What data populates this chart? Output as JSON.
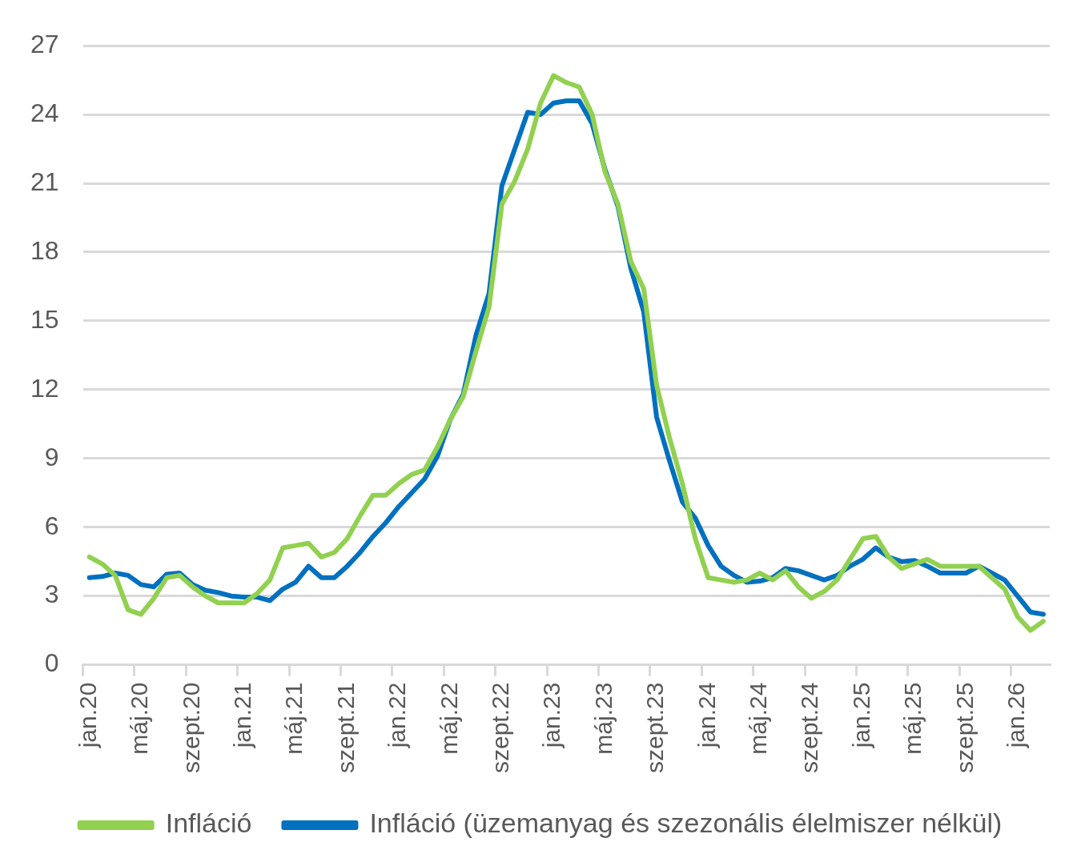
{
  "chart_data": {
    "type": "line",
    "categories": [
      "jan.20",
      null,
      null,
      null,
      "máj.20",
      null,
      null,
      null,
      "szept.20",
      null,
      null,
      null,
      "jan.21",
      null,
      null,
      null,
      "máj.21",
      null,
      null,
      null,
      "szept.21",
      null,
      null,
      null,
      "jan.22",
      null,
      null,
      null,
      "máj.22",
      null,
      null,
      null,
      "szept.22",
      null,
      null,
      null,
      "jan.23",
      null,
      null,
      null,
      "máj.23",
      null,
      null,
      null,
      "szept.23",
      null,
      null,
      null,
      "jan.24",
      null,
      null,
      null,
      "máj.24",
      null,
      null,
      null,
      "szept.24",
      null,
      null,
      null,
      "jan.25",
      null,
      null,
      null,
      "máj.25",
      null,
      null,
      null,
      "szept.25",
      null,
      null,
      null,
      "jan.26",
      null,
      null
    ],
    "series": [
      {
        "name": "Infláció",
        "color": "#92d050",
        "values": [
          4.7,
          4.4,
          3.9,
          2.4,
          2.2,
          2.9,
          3.8,
          3.9,
          3.4,
          3.0,
          2.7,
          2.7,
          2.7,
          3.1,
          3.7,
          5.1,
          5.2,
          5.3,
          4.7,
          4.9,
          5.5,
          6.5,
          7.4,
          7.4,
          7.9,
          8.3,
          8.5,
          9.5,
          10.7,
          11.7,
          13.7,
          15.6,
          20.1,
          21.1,
          22.5,
          24.5,
          25.7,
          25.4,
          25.2,
          24.0,
          21.5,
          20.1,
          17.6,
          16.4,
          12.2,
          9.9,
          7.9,
          5.5,
          3.8,
          3.7,
          3.6,
          3.7,
          4.0,
          3.7,
          4.1,
          3.4,
          2.9,
          3.2,
          3.7,
          4.6,
          5.5,
          5.6,
          4.7,
          4.2,
          4.4,
          4.6,
          4.3,
          4.3,
          4.3,
          4.3,
          3.8,
          3.3,
          2.1,
          1.5,
          1.9
        ]
      },
      {
        "name": "Infláció (üzemanyag és szezonális élelmiszer nélkül)",
        "color": "#0070c0",
        "values": [
          3.8,
          3.85,
          4.0,
          3.9,
          3.5,
          3.4,
          3.95,
          4.0,
          3.5,
          3.25,
          3.15,
          3.0,
          2.95,
          2.95,
          2.8,
          3.3,
          3.6,
          4.3,
          3.8,
          3.8,
          4.3,
          4.9,
          5.6,
          6.2,
          6.9,
          7.5,
          8.1,
          9.1,
          10.7,
          11.8,
          14.4,
          16.2,
          20.9,
          22.5,
          24.1,
          24.0,
          24.5,
          24.6,
          24.6,
          23.6,
          21.6,
          20.0,
          17.3,
          15.4,
          10.8,
          8.9,
          7.1,
          6.4,
          5.2,
          4.3,
          3.9,
          3.6,
          3.65,
          3.8,
          4.2,
          4.1,
          3.9,
          3.7,
          3.9,
          4.3,
          4.6,
          5.1,
          4.7,
          4.5,
          4.55,
          4.3,
          4.0,
          4.0,
          4.0,
          4.3,
          4.0,
          3.7,
          3.0,
          2.3,
          2.2
        ]
      }
    ],
    "ylim": [
      0,
      27
    ],
    "yticks": [
      0,
      3,
      6,
      9,
      12,
      15,
      18,
      21,
      24,
      27
    ],
    "grid": "y",
    "legend": "bottom",
    "marker": "none",
    "line_style": "solid"
  }
}
